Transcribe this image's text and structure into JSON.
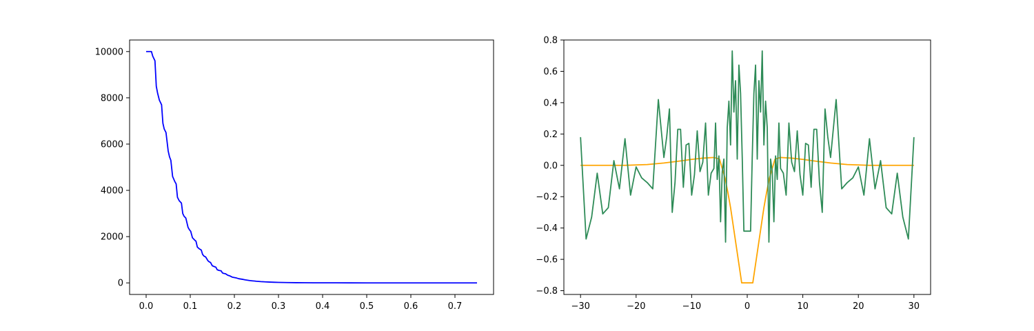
{
  "chart_data": [
    {
      "type": "line",
      "title": "",
      "xlabel": "",
      "ylabel": "",
      "xlim": [
        -0.0375,
        0.7875
      ],
      "ylim": [
        -500,
        10500
      ],
      "grid": false,
      "xticks": [
        0.0,
        0.1,
        0.2,
        0.3,
        0.4,
        0.5,
        0.6,
        0.7
      ],
      "xtick_labels": [
        "0.0",
        "0.1",
        "0.2",
        "0.3",
        "0.4",
        "0.5",
        "0.6",
        "0.7"
      ],
      "yticks": [
        0,
        2000,
        4000,
        6000,
        8000,
        10000
      ],
      "ytick_labels": [
        "0",
        "2000",
        "4000",
        "6000",
        "8000",
        "10000"
      ],
      "series": [
        {
          "color": "#0000ff",
          "x": [
            0.0,
            0.012,
            0.015,
            0.02,
            0.023,
            0.026,
            0.03,
            0.035,
            0.038,
            0.041,
            0.045,
            0.05,
            0.053,
            0.056,
            0.06,
            0.065,
            0.068,
            0.071,
            0.075,
            0.08,
            0.083,
            0.086,
            0.09,
            0.095,
            0.098,
            0.101,
            0.105,
            0.11,
            0.113,
            0.116,
            0.12,
            0.125,
            0.128,
            0.131,
            0.135,
            0.14,
            0.143,
            0.146,
            0.15,
            0.155,
            0.158,
            0.161,
            0.165,
            0.17,
            0.173,
            0.176,
            0.18,
            0.185,
            0.19,
            0.195,
            0.2,
            0.205,
            0.21,
            0.215,
            0.22,
            0.225,
            0.23,
            0.235,
            0.24,
            0.245,
            0.25,
            0.26,
            0.27,
            0.28,
            0.29,
            0.3,
            0.32,
            0.34,
            0.36,
            0.38,
            0.4,
            0.43,
            0.46,
            0.5,
            0.55,
            0.6,
            0.65,
            0.7,
            0.75
          ],
          "y": [
            10000,
            10000,
            9800,
            9600,
            8500,
            8200,
            7900,
            7700,
            6900,
            6650,
            6500,
            5700,
            5450,
            5300,
            4600,
            4380,
            4280,
            3700,
            3550,
            3450,
            3000,
            2880,
            2800,
            2400,
            2300,
            2230,
            1950,
            1850,
            1800,
            1550,
            1480,
            1420,
            1230,
            1160,
            1120,
            960,
            910,
            880,
            740,
            700,
            680,
            570,
            540,
            520,
            430,
            410,
            395,
            330,
            300,
            250,
            230,
            210,
            180,
            165,
            150,
            130,
            115,
            100,
            90,
            80,
            70,
            55,
            45,
            35,
            28,
            22,
            14,
            9,
            6,
            4,
            3,
            2,
            1,
            0,
            0,
            0,
            0,
            0,
            0
          ]
        }
      ]
    },
    {
      "type": "line",
      "title": "",
      "xlabel": "",
      "ylabel": "",
      "xlim": [
        -33,
        33
      ],
      "ylim": [
        -0.824,
        0.8
      ],
      "grid": false,
      "xticks": [
        -30,
        -20,
        -10,
        0,
        10,
        20,
        30
      ],
      "xtick_labels": [
        "−30",
        "−20",
        "−10",
        "0",
        "10",
        "20",
        "30"
      ],
      "yticks": [
        -0.8,
        -0.6,
        -0.4,
        -0.2,
        0.0,
        0.2,
        0.4,
        0.6,
        0.8
      ],
      "ytick_labels": [
        "−0.8",
        "−0.6",
        "−0.4",
        "−0.2",
        "0.0",
        "0.2",
        "0.4",
        "0.6",
        "0.8"
      ],
      "series": [
        {
          "color": "#ffa500",
          "x": [
            -30,
            -26,
            -22,
            -18,
            -15,
            -12,
            -10,
            -8,
            -6,
            -5,
            -4.5,
            -4,
            -3.5,
            -3,
            -2.5,
            -2,
            -1.5,
            -1,
            1,
            1.5,
            2,
            2.5,
            3,
            3.5,
            4,
            4.5,
            5,
            6,
            8,
            10,
            12,
            15,
            18,
            22,
            26,
            30
          ],
          "y": [
            0.0,
            0.0,
            0.0,
            0.005,
            0.015,
            0.028,
            0.038,
            0.046,
            0.05,
            0.04,
            -0.02,
            -0.08,
            -0.17,
            -0.27,
            -0.39,
            -0.51,
            -0.63,
            -0.75,
            -0.75,
            -0.63,
            -0.51,
            -0.39,
            -0.27,
            -0.17,
            -0.08,
            -0.02,
            0.04,
            0.05,
            0.046,
            0.038,
            0.028,
            0.015,
            0.005,
            0.0,
            0.0,
            0.0
          ]
        },
        {
          "color": "#2e8b57",
          "x": [
            -30,
            -29,
            -28,
            -27,
            -26,
            -25,
            -24,
            -23,
            -22,
            -21,
            -20,
            -19,
            -18,
            -17,
            -16,
            -15,
            -14.5,
            -14,
            -13.5,
            -13,
            -12.5,
            -12,
            -11.5,
            -11,
            -10.5,
            -10,
            -9.5,
            -9,
            -8.5,
            -8,
            -7.5,
            -7,
            -6.5,
            -6,
            -5.7,
            -5.4,
            -5.1,
            -4.8,
            -4.5,
            -4.2,
            -3.9,
            -3.6,
            -3.3,
            -3,
            -2.7,
            -2.4,
            -2.1,
            -1.8,
            -1.5,
            -1.2,
            -0.9,
            -0.6,
            0.6,
            0.9,
            1.2,
            1.5,
            1.8,
            2.1,
            2.4,
            2.7,
            3,
            3.3,
            3.6,
            3.9,
            4.2,
            4.5,
            4.8,
            5.1,
            5.4,
            5.7,
            6,
            6.5,
            7,
            7.5,
            8,
            8.5,
            9,
            9.5,
            10,
            10.5,
            11,
            11.5,
            12,
            12.5,
            13,
            13.5,
            14,
            14.5,
            15,
            16,
            17,
            18,
            19,
            20,
            21,
            22,
            23,
            24,
            25,
            26,
            27,
            28,
            29,
            30
          ],
          "y": [
            0.18,
            -0.47,
            -0.33,
            -0.05,
            -0.31,
            -0.27,
            0.03,
            -0.15,
            0.17,
            -0.19,
            -0.01,
            -0.08,
            -0.11,
            -0.15,
            0.42,
            0.05,
            0.18,
            0.36,
            -0.3,
            -0.11,
            0.23,
            0.23,
            -0.14,
            0.13,
            0.14,
            -0.19,
            -0.06,
            0.22,
            -0.04,
            0.02,
            0.27,
            -0.19,
            -0.05,
            -0.02,
            0.27,
            -0.09,
            0.06,
            -0.36,
            -0.04,
            0.04,
            -0.49,
            0.24,
            0.41,
            0.13,
            0.73,
            0.34,
            0.54,
            0.04,
            0.64,
            0.46,
            0.05,
            -0.42,
            -0.42,
            0.05,
            0.46,
            0.64,
            0.04,
            0.54,
            0.34,
            0.73,
            0.13,
            0.41,
            0.24,
            -0.49,
            0.04,
            -0.04,
            -0.36,
            0.06,
            -0.09,
            0.27,
            -0.02,
            -0.05,
            -0.19,
            0.27,
            0.02,
            -0.04,
            0.22,
            -0.06,
            -0.19,
            0.14,
            0.13,
            -0.14,
            0.23,
            0.23,
            -0.11,
            -0.3,
            0.36,
            0.18,
            0.05,
            0.42,
            -0.15,
            -0.11,
            -0.08,
            -0.01,
            -0.19,
            0.17,
            -0.15,
            0.03,
            -0.27,
            -0.31,
            -0.05,
            -0.33,
            -0.47,
            0.18
          ]
        }
      ]
    }
  ]
}
